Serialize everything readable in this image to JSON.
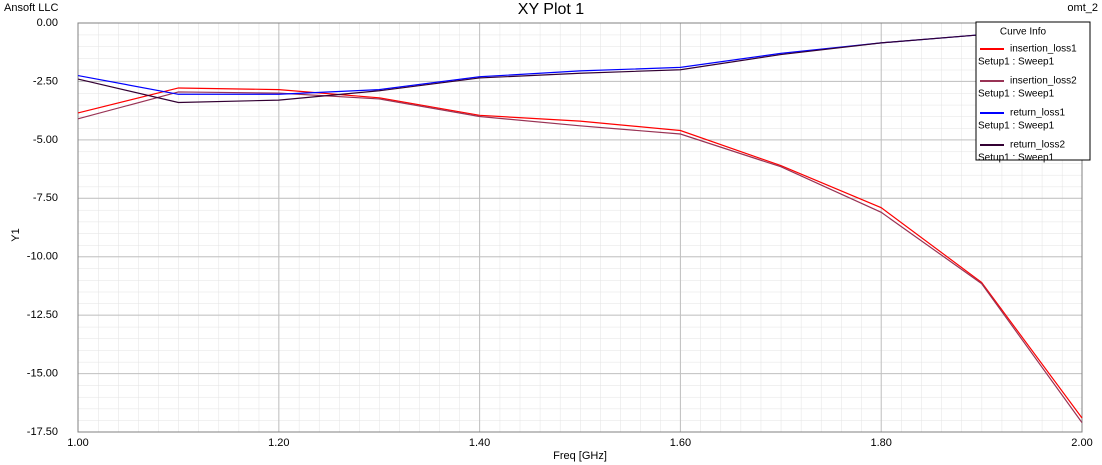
{
  "chart_data": {
    "type": "line",
    "title": "XY Plot 1",
    "corner_left": "Ansoft LLC",
    "corner_right": "omt_2",
    "x_label": "Freq [GHz]",
    "y_label": "Y1",
    "legend_title": "Curve Info",
    "legend": "upper right",
    "grid": true,
    "x": [
      1.0,
      1.1,
      1.2,
      1.3,
      1.4,
      1.5,
      1.6,
      1.7,
      1.8,
      1.9,
      2.0
    ],
    "series": [
      {
        "name": "insertion_loss1",
        "setup": "Setup1 : Sweep1",
        "color": "#ff0000",
        "values": [
          -3.85,
          -2.78,
          -2.85,
          -3.2,
          -3.95,
          -4.2,
          -4.6,
          -6.1,
          -7.9,
          -11.1,
          -16.9
        ]
      },
      {
        "name": "insertion_loss2",
        "setup": "Setup1 : Sweep1",
        "color": "#993355",
        "values": [
          -4.1,
          -2.95,
          -3.0,
          -3.25,
          -4.0,
          -4.4,
          -4.75,
          -6.15,
          -8.1,
          -11.15,
          -17.1
        ]
      },
      {
        "name": "return_loss1",
        "setup": "Setup1 : Sweep1",
        "color": "#0000ff",
        "values": [
          -2.25,
          -3.05,
          -3.05,
          -2.85,
          -2.3,
          -2.05,
          -1.9,
          -1.3,
          -0.85,
          -0.5,
          -0.2
        ]
      },
      {
        "name": "return_loss2",
        "setup": "Setup1 : Sweep1",
        "color": "#330033",
        "values": [
          -2.4,
          -3.4,
          -3.3,
          -2.9,
          -2.35,
          -2.15,
          -2.0,
          -1.35,
          -0.85,
          -0.5,
          -0.2
        ]
      }
    ],
    "xlim": [
      1.0,
      2.0
    ],
    "xticks": [
      {
        "value": 1.0,
        "label": "1.00"
      },
      {
        "value": 1.2,
        "label": "1.20"
      },
      {
        "value": 1.4,
        "label": "1.40"
      },
      {
        "value": 1.6,
        "label": "1.60"
      },
      {
        "value": 1.8,
        "label": "1.80"
      },
      {
        "value": 2.0,
        "label": "2.00"
      }
    ],
    "ylim": [
      -17.5,
      0
    ],
    "yticks": [
      {
        "value": 0,
        "label": "0.00"
      },
      {
        "value": -2.5,
        "label": "-2.50"
      },
      {
        "value": -5,
        "label": "-5.00"
      },
      {
        "value": -7.5,
        "label": "-7.50"
      },
      {
        "value": -10,
        "label": "-10.00"
      },
      {
        "value": -12.5,
        "label": "-12.50"
      },
      {
        "value": -15,
        "label": "-15.00"
      },
      {
        "value": -17.5,
        "label": "-17.50"
      }
    ]
  }
}
